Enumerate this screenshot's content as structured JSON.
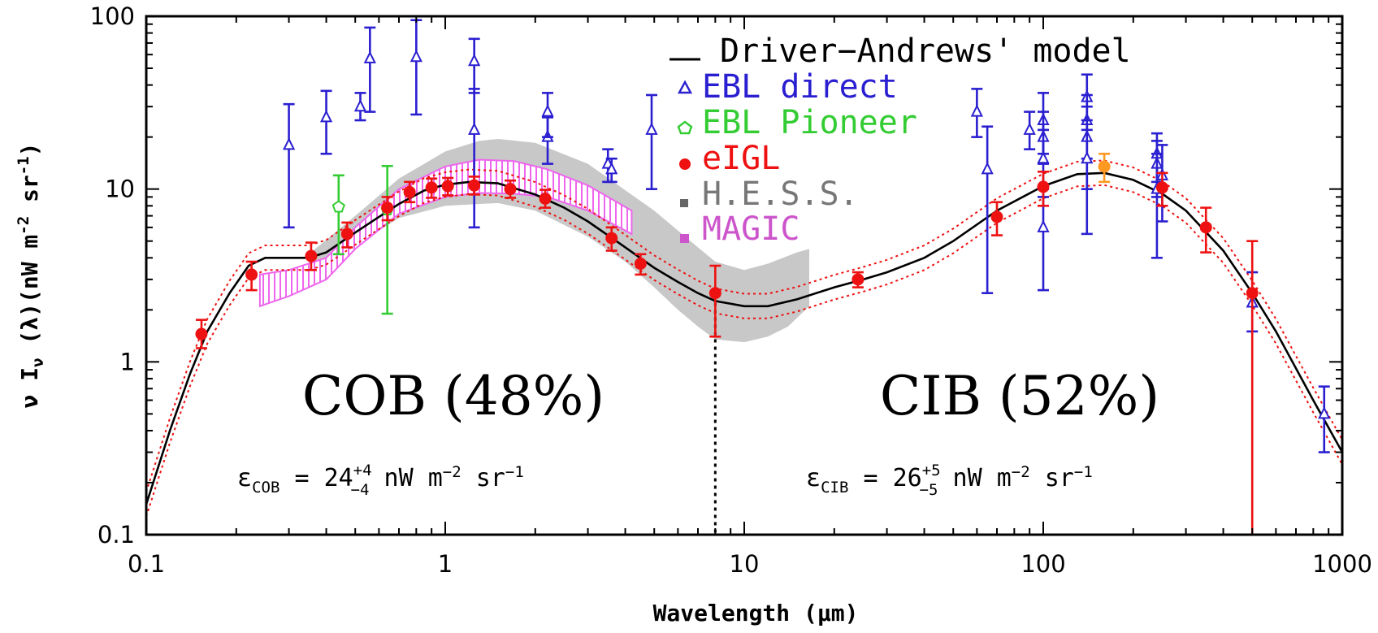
{
  "chart_data": {
    "type": "scatter",
    "xscale": "log",
    "yscale": "log",
    "xlim": [
      0.1,
      1000
    ],
    "ylim": [
      0.1,
      100
    ],
    "xlabel": "Wavelength (μm)",
    "ylabel": {
      "prefix": "ν I",
      "sub": "ν",
      "rest": " (λ)(nW m",
      "sup1": "-2",
      "mid": " sr",
      "sup2": "-1",
      "end": ")"
    },
    "x_ticks": [
      {
        "v": 0.1,
        "label": "0.1"
      },
      {
        "v": 1,
        "label": "1"
      },
      {
        "v": 10,
        "label": "10"
      },
      {
        "v": 100,
        "label": "100"
      },
      {
        "v": 1000,
        "label": "1000"
      }
    ],
    "y_ticks": [
      {
        "v": 0.1,
        "label": "0.1"
      },
      {
        "v": 1,
        "label": "1"
      },
      {
        "v": 10,
        "label": "10"
      },
      {
        "v": 100,
        "label": "100"
      }
    ],
    "colors": {
      "model": "#000000",
      "ebl_direct": "#2a1fd0",
      "ebl_pioneer": "#33cc33",
      "eigl": "#ee1111",
      "hess": "#c8c8c8",
      "magic": "#ee66ee",
      "orange": "#ff9922"
    },
    "legend": [
      {
        "key": "model",
        "label": "Driver−Andrews' model",
        "color": "#000000"
      },
      {
        "key": "ebl_direct",
        "label": "EBL direct",
        "color": "#2a1fd0"
      },
      {
        "key": "ebl_pioneer",
        "label": "EBL Pioneer",
        "color": "#33cc33"
      },
      {
        "key": "eigl",
        "label": "eIGL",
        "color": "#ee1111"
      },
      {
        "key": "hess",
        "label": "H.E.S.S.",
        "color": "#777777"
      },
      {
        "key": "magic",
        "label": "MAGIC",
        "color": "#cc55cc"
      }
    ],
    "annotations": {
      "cob": "COB (48%)",
      "cib": "CIB (52%)",
      "divider_x": 8,
      "eps_cob": {
        "sym": "ε",
        "sub": "COB",
        "eq": " = 24",
        "plus": "+4",
        "minus": "−4",
        "unit": " nW m",
        "e1": "−2",
        "sr": " sr",
        "e2": "−1"
      },
      "eps_cib": {
        "sym": "ε",
        "sub": "CIB",
        "eq": " = 26",
        "plus": "+5",
        "minus": "−5",
        "unit": " nW m",
        "e1": "−2",
        "sr": " sr",
        "e2": "−1"
      }
    },
    "model_curve": [
      [
        0.1,
        0.15
      ],
      [
        0.12,
        0.4
      ],
      [
        0.14,
        0.85
      ],
      [
        0.16,
        1.5
      ],
      [
        0.19,
        2.5
      ],
      [
        0.22,
        3.6
      ],
      [
        0.25,
        4.0
      ],
      [
        0.3,
        4.0
      ],
      [
        0.35,
        4.0
      ],
      [
        0.4,
        4.3
      ],
      [
        0.5,
        5.6
      ],
      [
        0.6,
        6.9
      ],
      [
        0.7,
        8.2
      ],
      [
        0.85,
        9.8
      ],
      [
        1.0,
        10.6
      ],
      [
        1.2,
        11.0
      ],
      [
        1.5,
        10.8
      ],
      [
        2.0,
        9.3
      ],
      [
        2.5,
        7.8
      ],
      [
        3.0,
        6.5
      ],
      [
        4.0,
        4.6
      ],
      [
        5.0,
        3.5
      ],
      [
        6.0,
        2.9
      ],
      [
        7.0,
        2.5
      ],
      [
        8.0,
        2.25
      ],
      [
        10.0,
        2.1
      ],
      [
        12.0,
        2.1
      ],
      [
        15.0,
        2.3
      ],
      [
        20.0,
        2.7
      ],
      [
        25.0,
        3.0
      ],
      [
        30.0,
        3.3
      ],
      [
        40.0,
        4.0
      ],
      [
        50.0,
        5.0
      ],
      [
        70.0,
        7.5
      ],
      [
        100.0,
        10.4
      ],
      [
        130.0,
        12.2
      ],
      [
        160.0,
        12.4
      ],
      [
        200.0,
        11.3
      ],
      [
        250.0,
        9.4
      ],
      [
        300.0,
        7.5
      ],
      [
        400.0,
        4.4
      ],
      [
        500.0,
        2.5
      ],
      [
        600.0,
        1.5
      ],
      [
        800.0,
        0.6
      ],
      [
        1000.0,
        0.3
      ]
    ],
    "hess_band_upper": [
      [
        0.35,
        4.2
      ],
      [
        0.5,
        7.0
      ],
      [
        0.7,
        11.5
      ],
      [
        1.0,
        16.5
      ],
      [
        1.3,
        19.0
      ],
      [
        1.5,
        19.5
      ],
      [
        2.0,
        18.5
      ],
      [
        3.0,
        14.0
      ],
      [
        5.0,
        7.5
      ],
      [
        7.0,
        4.6
      ],
      [
        8.0,
        3.8
      ],
      [
        10.0,
        3.4
      ],
      [
        12.0,
        3.7
      ],
      [
        15.0,
        4.3
      ],
      [
        16.5,
        4.5
      ]
    ],
    "hess_band_lower": [
      [
        16.5,
        2.1
      ],
      [
        14.0,
        1.6
      ],
      [
        12.0,
        1.4
      ],
      [
        10.0,
        1.3
      ],
      [
        8.0,
        1.35
      ],
      [
        7.0,
        1.6
      ],
      [
        6.0,
        2.0
      ],
      [
        5.0,
        2.7
      ],
      [
        4.0,
        3.8
      ],
      [
        3.0,
        5.3
      ],
      [
        2.0,
        7.5
      ],
      [
        1.5,
        8.3
      ],
      [
        1.0,
        8.0
      ],
      [
        0.7,
        6.8
      ],
      [
        0.5,
        4.7
      ],
      [
        0.35,
        3.5
      ]
    ],
    "magic_band_upper": [
      [
        0.24,
        3.2
      ],
      [
        0.3,
        3.4
      ],
      [
        0.4,
        4.0
      ],
      [
        0.5,
        6.0
      ],
      [
        0.7,
        10.0
      ],
      [
        1.0,
        13.5
      ],
      [
        1.3,
        14.8
      ],
      [
        1.7,
        14.5
      ],
      [
        2.2,
        13.0
      ],
      [
        3.0,
        10.5
      ],
      [
        4.2,
        7.5
      ]
    ],
    "magic_band_lower": [
      [
        4.2,
        5.5
      ],
      [
        3.0,
        7.5
      ],
      [
        2.2,
        9.0
      ],
      [
        1.7,
        9.4
      ],
      [
        1.3,
        9.5
      ],
      [
        1.0,
        9.0
      ],
      [
        0.7,
        7.2
      ],
      [
        0.5,
        4.5
      ],
      [
        0.4,
        3.0
      ],
      [
        0.3,
        2.4
      ],
      [
        0.24,
        2.1
      ]
    ],
    "series": [
      {
        "name": "EBL direct",
        "marker": "triangle",
        "color": "#2a1fd0",
        "points": [
          {
            "x": 0.3,
            "y": 18,
            "lo": 6,
            "hi": 31
          },
          {
            "x": 0.4,
            "y": 26,
            "lo": 16,
            "hi": 37
          },
          {
            "x": 0.52,
            "y": 30,
            "lo": 25,
            "hi": 36
          },
          {
            "x": 0.56,
            "y": 57,
            "lo": 28,
            "hi": 86
          },
          {
            "x": 0.8,
            "y": 58,
            "lo": 27,
            "hi": 95
          },
          {
            "x": 1.25,
            "y": 22,
            "lo": 6,
            "hi": 38
          },
          {
            "x": 1.25,
            "y": 55,
            "lo": 36,
            "hi": 74
          },
          {
            "x": 2.2,
            "y": 20,
            "lo": 14,
            "hi": 26
          },
          {
            "x": 2.2,
            "y": 28,
            "lo": 20,
            "hi": 36
          },
          {
            "x": 3.5,
            "y": 14,
            "lo": 11,
            "hi": 17
          },
          {
            "x": 3.6,
            "y": 13,
            "lo": 11,
            "hi": 15
          },
          {
            "x": 4.9,
            "y": 22,
            "lo": 10,
            "hi": 35
          },
          {
            "x": 60,
            "y": 28,
            "lo": 20,
            "hi": 38
          },
          {
            "x": 65,
            "y": 13,
            "lo": 2.5,
            "hi": 23
          },
          {
            "x": 90,
            "y": 22,
            "lo": 17,
            "hi": 28
          },
          {
            "x": 100,
            "y": 25,
            "lo": 16,
            "hi": 36
          },
          {
            "x": 100,
            "y": 20,
            "lo": 14,
            "hi": 28
          },
          {
            "x": 100,
            "y": 15,
            "lo": 9,
            "hi": 22
          },
          {
            "x": 100,
            "y": 6,
            "lo": 2.6,
            "hi": 10
          },
          {
            "x": 140,
            "y": 34,
            "lo": 22,
            "hi": 46
          },
          {
            "x": 140,
            "y": 25,
            "lo": 15,
            "hi": 35
          },
          {
            "x": 140,
            "y": 20,
            "lo": 10,
            "hi": 30
          },
          {
            "x": 140,
            "y": 15,
            "lo": 5.5,
            "hi": 25
          },
          {
            "x": 240,
            "y": 16,
            "lo": 11,
            "hi": 21
          },
          {
            "x": 240,
            "y": 14,
            "lo": 9,
            "hi": 19
          },
          {
            "x": 250,
            "y": 12,
            "lo": 6.5,
            "hi": 18
          },
          {
            "x": 240,
            "y": 10,
            "lo": 4,
            "hi": 16
          },
          {
            "x": 500,
            "y": 2.2,
            "lo": 1.5,
            "hi": 3.3
          },
          {
            "x": 870,
            "y": 0.5,
            "lo": 0.3,
            "hi": 0.72
          }
        ]
      },
      {
        "name": "EBL Pioneer",
        "marker": "pentagon",
        "color": "#33cc33",
        "points": [
          {
            "x": 0.44,
            "y": 7.9,
            "lo": 4.2,
            "hi": 12
          },
          {
            "x": 0.64,
            "y": 7.6,
            "lo": 1.9,
            "hi": 13.6
          }
        ]
      },
      {
        "name": "eIGL",
        "marker": "circle",
        "color": "#ee1111",
        "points": [
          {
            "x": 0.153,
            "y": 1.45,
            "lo": 1.2,
            "hi": 1.75
          },
          {
            "x": 0.225,
            "y": 3.2,
            "lo": 2.6,
            "hi": 3.8
          },
          {
            "x": 0.356,
            "y": 4.1,
            "lo": 3.4,
            "hi": 4.9
          },
          {
            "x": 0.47,
            "y": 5.5,
            "lo": 4.6,
            "hi": 6.4
          },
          {
            "x": 0.64,
            "y": 7.8,
            "lo": 6.6,
            "hi": 9.0
          },
          {
            "x": 0.76,
            "y": 9.6,
            "lo": 8.4,
            "hi": 11
          },
          {
            "x": 0.9,
            "y": 10.2,
            "lo": 8.9,
            "hi": 11.5
          },
          {
            "x": 1.02,
            "y": 10.4,
            "lo": 9.2,
            "hi": 11.6
          },
          {
            "x": 1.25,
            "y": 10.5,
            "lo": 9.3,
            "hi": 11.8
          },
          {
            "x": 1.65,
            "y": 10.0,
            "lo": 8.9,
            "hi": 11.2
          },
          {
            "x": 2.16,
            "y": 8.8,
            "lo": 7.8,
            "hi": 9.9
          },
          {
            "x": 3.6,
            "y": 5.2,
            "lo": 4.4,
            "hi": 6.0
          },
          {
            "x": 4.5,
            "y": 3.7,
            "lo": 3.2,
            "hi": 4.2
          },
          {
            "x": 8.0,
            "y": 2.5,
            "lo": 1.4,
            "hi": 3.6
          },
          {
            "x": 24,
            "y": 3.0,
            "lo": 2.7,
            "hi": 3.3
          },
          {
            "x": 70,
            "y": 6.9,
            "lo": 5.4,
            "hi": 8.4
          },
          {
            "x": 100,
            "y": 10.3,
            "lo": 8.0,
            "hi": 12.6
          },
          {
            "x": 250,
            "y": 10.2,
            "lo": 8.0,
            "hi": 12.4
          },
          {
            "x": 350,
            "y": 6.0,
            "lo": 4.3,
            "hi": 7.8
          },
          {
            "x": 500,
            "y": 2.5,
            "lo": 0.1,
            "hi": 5.0
          }
        ]
      },
      {
        "name": "orange",
        "marker": "circle",
        "color": "#ff9922",
        "points": [
          {
            "x": 160,
            "y": 13.5,
            "lo": 11,
            "hi": 16
          }
        ]
      }
    ]
  }
}
